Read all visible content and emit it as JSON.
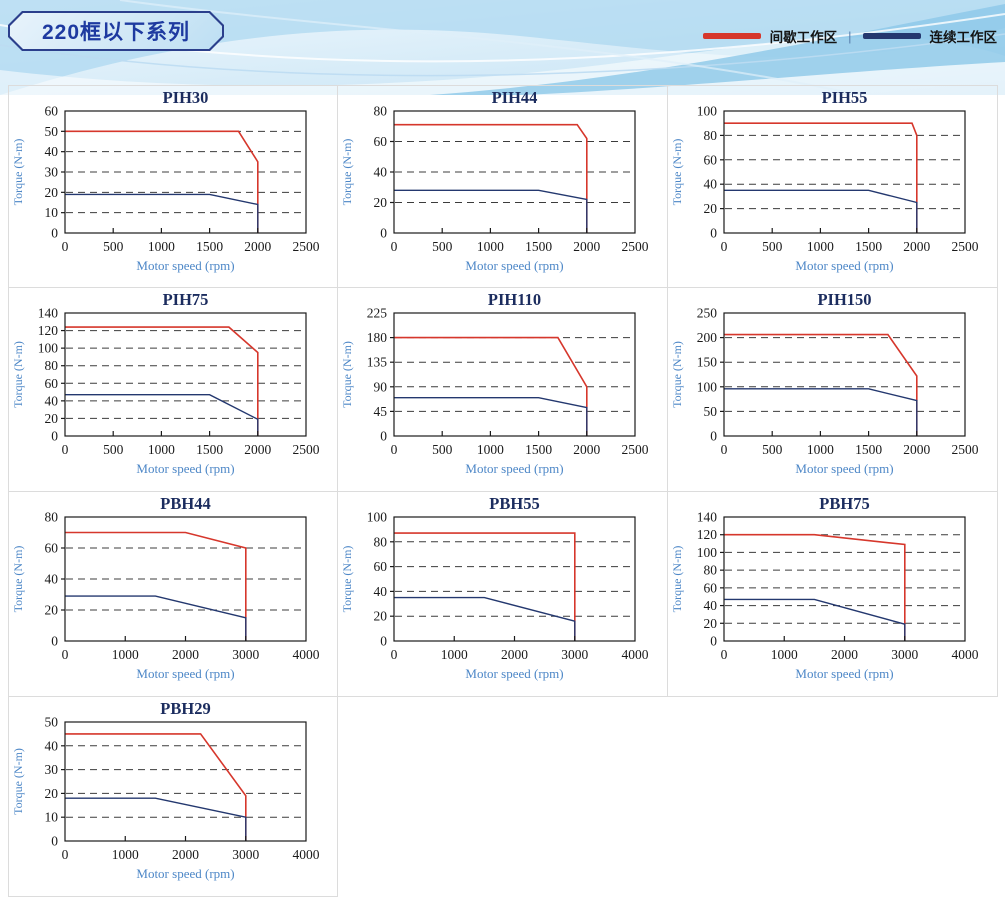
{
  "header": {
    "title": "220框以下系列",
    "legend": {
      "intermittent_label": "间歇工作区",
      "separator": "|",
      "continuous_label": "连续工作区"
    }
  },
  "palette": {
    "intermittent": "#d6372c",
    "continuous": "#24386f",
    "chart_title": "#1b2c5e",
    "axis_label_blue": "#4d87c7",
    "tick_text": "#1a1a1a",
    "gridline": "#3c3c3c",
    "axis_box": "#1a1a1a",
    "badge_border": "#2b3f8c",
    "badge_text": "#1e3aa0"
  },
  "chart_data": [
    {
      "type": "line",
      "title": "PIH30",
      "xlabel": "Motor speed (rpm)",
      "ylabel": "Torque (N-m)",
      "xlim": [
        0,
        2500
      ],
      "xtick_step": 500,
      "ylim": [
        0,
        60
      ],
      "ytick_step": 10,
      "grid": "horizontal-dashed",
      "legend_position": "none",
      "series": [
        {
          "name": "间歇工作区",
          "role": "intermittent",
          "points": [
            [
              0,
              50
            ],
            [
              1800,
              50
            ],
            [
              2000,
              35
            ],
            [
              2000,
              0
            ]
          ]
        },
        {
          "name": "连续工作区",
          "role": "continuous",
          "points": [
            [
              0,
              19
            ],
            [
              1500,
              19
            ],
            [
              2000,
              14
            ],
            [
              2000,
              0
            ]
          ]
        }
      ]
    },
    {
      "type": "line",
      "title": "PIH44",
      "xlabel": "Motor speed (rpm)",
      "ylabel": "Torque (N-m)",
      "xlim": [
        0,
        2500
      ],
      "xtick_step": 500,
      "ylim": [
        0,
        80
      ],
      "ytick_step": 20,
      "grid": "horizontal-dashed",
      "legend_position": "none",
      "series": [
        {
          "name": "间歇工作区",
          "role": "intermittent",
          "points": [
            [
              0,
              71
            ],
            [
              1900,
              71
            ],
            [
              2000,
              62
            ],
            [
              2000,
              0
            ]
          ]
        },
        {
          "name": "连续工作区",
          "role": "continuous",
          "points": [
            [
              0,
              28
            ],
            [
              1500,
              28
            ],
            [
              2000,
              22
            ],
            [
              2000,
              0
            ]
          ]
        }
      ]
    },
    {
      "type": "line",
      "title": "PIH55",
      "xlabel": "Motor speed (rpm)",
      "ylabel": "Torque (N-m)",
      "xlim": [
        0,
        2500
      ],
      "xtick_step": 500,
      "ylim": [
        0,
        100
      ],
      "ytick_step": 20,
      "grid": "horizontal-dashed",
      "legend_position": "none",
      "series": [
        {
          "name": "间歇工作区",
          "role": "intermittent",
          "points": [
            [
              0,
              90
            ],
            [
              1950,
              90
            ],
            [
              2000,
              80
            ],
            [
              2000,
              0
            ]
          ]
        },
        {
          "name": "连续工作区",
          "role": "continuous",
          "points": [
            [
              0,
              35
            ],
            [
              1500,
              35
            ],
            [
              2000,
              25
            ],
            [
              2000,
              0
            ]
          ]
        }
      ]
    },
    {
      "type": "line",
      "title": "PIH75",
      "xlabel": "Motor speed (rpm)",
      "ylabel": "Torque (N-m)",
      "xlim": [
        0,
        2500
      ],
      "xtick_step": 500,
      "ylim": [
        0,
        140
      ],
      "ytick_step": 20,
      "grid": "horizontal-dashed",
      "legend_position": "none",
      "series": [
        {
          "name": "间歇工作区",
          "role": "intermittent",
          "points": [
            [
              0,
              124
            ],
            [
              1700,
              124
            ],
            [
              2000,
              95
            ],
            [
              2000,
              0
            ]
          ]
        },
        {
          "name": "连续工作区",
          "role": "continuous",
          "points": [
            [
              0,
              47
            ],
            [
              1500,
              47
            ],
            [
              2000,
              19
            ],
            [
              2000,
              0
            ]
          ]
        }
      ]
    },
    {
      "type": "line",
      "title": "PIH110",
      "xlabel": "Motor speed (rpm)",
      "ylabel": "Torque (N-m)",
      "xlim": [
        0,
        2500
      ],
      "xtick_step": 500,
      "ylim": [
        0,
        225
      ],
      "ytick_step": 45,
      "grid": "horizontal-dashed",
      "legend_position": "none",
      "series": [
        {
          "name": "间歇工作区",
          "role": "intermittent",
          "points": [
            [
              0,
              180
            ],
            [
              1700,
              180
            ],
            [
              2000,
              90
            ],
            [
              2000,
              0
            ]
          ]
        },
        {
          "name": "连续工作区",
          "role": "continuous",
          "points": [
            [
              0,
              70
            ],
            [
              1500,
              70
            ],
            [
              2000,
              52
            ],
            [
              2000,
              0
            ]
          ]
        }
      ]
    },
    {
      "type": "line",
      "title": "PIH150",
      "xlabel": "Motor speed (rpm)",
      "ylabel": "Torque (N-m)",
      "xlim": [
        0,
        2500
      ],
      "xtick_step": 500,
      "ylim": [
        0,
        250
      ],
      "ytick_step": 50,
      "grid": "horizontal-dashed",
      "legend_position": "none",
      "series": [
        {
          "name": "间歇工作区",
          "role": "intermittent",
          "points": [
            [
              0,
              206
            ],
            [
              1700,
              206
            ],
            [
              2000,
              122
            ],
            [
              2000,
              0
            ]
          ]
        },
        {
          "name": "连续工作区",
          "role": "continuous",
          "points": [
            [
              0,
              96
            ],
            [
              1500,
              96
            ],
            [
              2000,
              72
            ],
            [
              2000,
              0
            ]
          ]
        }
      ]
    },
    {
      "type": "line",
      "title": "PBH44",
      "xlabel": "Motor speed (rpm)",
      "ylabel": "Torque (N-m)",
      "xlim": [
        0,
        4000
      ],
      "xtick_step": 1000,
      "ylim": [
        0,
        80
      ],
      "ytick_step": 20,
      "grid": "horizontal-dashed",
      "legend_position": "none",
      "series": [
        {
          "name": "间歇工作区",
          "role": "intermittent",
          "points": [
            [
              0,
              70
            ],
            [
              2000,
              70
            ],
            [
              3000,
              60
            ],
            [
              3000,
              0
            ]
          ]
        },
        {
          "name": "连续工作区",
          "role": "continuous",
          "points": [
            [
              0,
              29
            ],
            [
              1500,
              29
            ],
            [
              3000,
              15
            ],
            [
              3000,
              0
            ]
          ]
        }
      ]
    },
    {
      "type": "line",
      "title": "PBH55",
      "xlabel": "Motor speed (rpm)",
      "ylabel": "Torque (N-m)",
      "xlim": [
        0,
        4000
      ],
      "xtick_step": 1000,
      "ylim": [
        0,
        100
      ],
      "ytick_step": 20,
      "grid": "horizontal-dashed",
      "legend_position": "none",
      "series": [
        {
          "name": "间歇工作区",
          "role": "intermittent",
          "points": [
            [
              0,
              87
            ],
            [
              3000,
              87
            ],
            [
              3000,
              0
            ]
          ]
        },
        {
          "name": "连续工作区",
          "role": "continuous",
          "points": [
            [
              0,
              35
            ],
            [
              1500,
              35
            ],
            [
              3000,
              16
            ],
            [
              3000,
              0
            ]
          ]
        }
      ]
    },
    {
      "type": "line",
      "title": "PBH75",
      "xlabel": "Motor speed (rpm)",
      "ylabel": "Torque (N-m)",
      "xlim": [
        0,
        4000
      ],
      "xtick_step": 1000,
      "ylim": [
        0,
        140
      ],
      "ytick_step": 20,
      "grid": "horizontal-dashed",
      "legend_position": "none",
      "series": [
        {
          "name": "间歇工作区",
          "role": "intermittent",
          "points": [
            [
              0,
              120
            ],
            [
              1500,
              120
            ],
            [
              3000,
              109
            ],
            [
              3000,
              0
            ]
          ]
        },
        {
          "name": "连续工作区",
          "role": "continuous",
          "points": [
            [
              0,
              47
            ],
            [
              1500,
              47
            ],
            [
              3000,
              19
            ],
            [
              3000,
              0
            ]
          ]
        }
      ]
    },
    {
      "type": "line",
      "title": "PBH29",
      "xlabel": "Motor speed (rpm)",
      "ylabel": "Torque (N-m)",
      "xlim": [
        0,
        4000
      ],
      "xtick_step": 1000,
      "ylim": [
        0,
        50
      ],
      "ytick_step": 10,
      "grid": "horizontal-dashed",
      "legend_position": "none",
      "series": [
        {
          "name": "间歇工作区",
          "role": "intermittent",
          "points": [
            [
              0,
              45
            ],
            [
              2250,
              45
            ],
            [
              3000,
              19
            ],
            [
              3000,
              0
            ]
          ]
        },
        {
          "name": "连续工作区",
          "role": "continuous",
          "points": [
            [
              0,
              18
            ],
            [
              1500,
              18
            ],
            [
              3000,
              10
            ],
            [
              3000,
              0
            ]
          ]
        }
      ]
    }
  ]
}
